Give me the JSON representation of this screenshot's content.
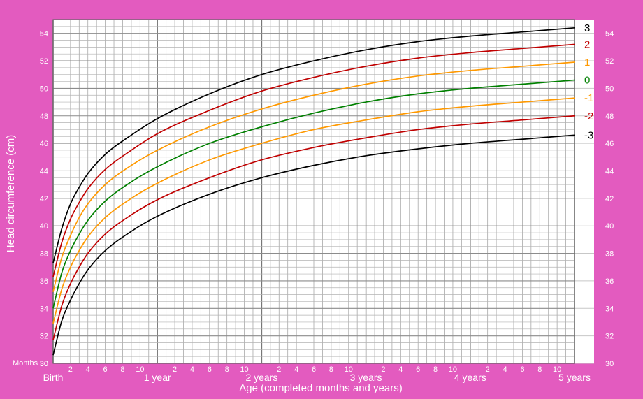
{
  "chart_data": {
    "type": "line",
    "xlabel": "Age (completed months and years)",
    "ylabel": "Head circumference (cm)",
    "x_unit": "months",
    "xlim": [
      0,
      60
    ],
    "ylim": [
      30,
      55
    ],
    "yticks": [
      30,
      32,
      34,
      36,
      38,
      40,
      42,
      44,
      46,
      48,
      50,
      52,
      54
    ],
    "months_label": "Months",
    "month_ticks": [
      2,
      4,
      6,
      8,
      10
    ],
    "year_labels": [
      {
        "month": 0,
        "label": "Birth"
      },
      {
        "month": 12,
        "label": "1 year"
      },
      {
        "month": 24,
        "label": "2 years"
      },
      {
        "month": 36,
        "label": "3 years"
      },
      {
        "month": 48,
        "label": "4 years"
      },
      {
        "month": 60,
        "label": "5 years"
      }
    ],
    "grid": true,
    "legend": "right",
    "x": [
      0,
      1,
      2,
      3,
      4,
      6,
      9,
      12,
      18,
      24,
      30,
      36,
      42,
      48,
      54,
      60
    ],
    "series": [
      {
        "name": "3",
        "color": "#000000",
        "values": [
          37.3,
          39.8,
          41.6,
          42.8,
          43.8,
          45.2,
          46.6,
          47.8,
          49.6,
          51.0,
          52.0,
          52.8,
          53.4,
          53.8,
          54.1,
          54.4
        ]
      },
      {
        "name": "2",
        "color": "#c00000",
        "values": [
          36.3,
          38.8,
          40.5,
          41.7,
          42.7,
          44.1,
          45.5,
          46.7,
          48.4,
          49.8,
          50.8,
          51.6,
          52.2,
          52.6,
          52.9,
          53.2
        ]
      },
      {
        "name": "1",
        "color": "#ff9900",
        "values": [
          35.2,
          37.7,
          39.3,
          40.6,
          41.6,
          43.0,
          44.4,
          45.5,
          47.2,
          48.5,
          49.5,
          50.3,
          50.9,
          51.3,
          51.6,
          51.9
        ]
      },
      {
        "name": "0",
        "color": "#008000",
        "values": [
          34.0,
          36.6,
          38.2,
          39.4,
          40.4,
          41.8,
          43.2,
          44.3,
          46.0,
          47.2,
          48.2,
          49.0,
          49.6,
          50.0,
          50.3,
          50.6
        ]
      },
      {
        "name": "-1",
        "color": "#ff9900",
        "values": [
          32.9,
          35.4,
          37.0,
          38.2,
          39.2,
          40.6,
          42.0,
          43.1,
          44.8,
          46.0,
          47.0,
          47.7,
          48.3,
          48.7,
          49.0,
          49.3
        ]
      },
      {
        "name": "-2",
        "color": "#c00000",
        "values": [
          31.7,
          34.2,
          35.8,
          37.0,
          38.0,
          39.4,
          40.8,
          41.9,
          43.5,
          44.8,
          45.7,
          46.4,
          47.0,
          47.4,
          47.7,
          48.0
        ]
      },
      {
        "name": "-3",
        "color": "#000000",
        "values": [
          30.6,
          33.1,
          34.6,
          35.8,
          36.8,
          38.2,
          39.6,
          40.7,
          42.3,
          43.5,
          44.4,
          45.1,
          45.6,
          46.0,
          46.3,
          46.6
        ]
      }
    ]
  }
}
